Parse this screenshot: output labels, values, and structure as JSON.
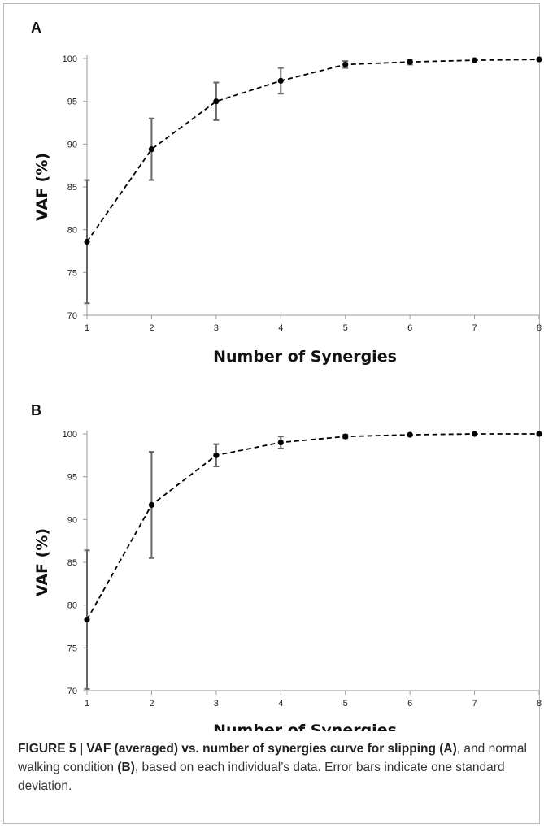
{
  "chart_data": [
    {
      "panel": "A",
      "type": "line",
      "xlabel": "Number of Synergies",
      "ylabel": "VAF (%)",
      "x": [
        1,
        2,
        3,
        4,
        5,
        6,
        7,
        8
      ],
      "xticks": [
        "1",
        "2",
        "3",
        "4",
        "5",
        "6",
        "7",
        "8"
      ],
      "yticks": [
        "70",
        "75",
        "80",
        "85",
        "90",
        "95",
        "100"
      ],
      "ylim": [
        70,
        100
      ],
      "series": [
        {
          "values": [
            78.6,
            89.4,
            95.0,
            97.4,
            99.3,
            99.6,
            99.8,
            99.9
          ],
          "error": [
            7.2,
            3.6,
            2.2,
            1.5,
            0.4,
            0.3,
            0.1,
            0.1
          ]
        }
      ],
      "style": {
        "line": "dashed",
        "marker": "circle",
        "color": "#000000",
        "errorbar_color": "#666666"
      },
      "grid": false
    },
    {
      "panel": "B",
      "type": "line",
      "xlabel": "Number of Synergies",
      "ylabel": "VAF (%)",
      "x": [
        1,
        2,
        3,
        4,
        5,
        6,
        7,
        8
      ],
      "xticks": [
        "1",
        "2",
        "3",
        "4",
        "5",
        "6",
        "7",
        "8"
      ],
      "yticks": [
        "70",
        "75",
        "80",
        "85",
        "90",
        "95",
        "100"
      ],
      "ylim": [
        70,
        100
      ],
      "series": [
        {
          "values": [
            78.3,
            91.7,
            97.5,
            99.0,
            99.7,
            99.9,
            100.0,
            100.0
          ],
          "error": [
            8.1,
            6.2,
            1.3,
            0.7,
            0.2,
            0.1,
            0.05,
            0.05
          ]
        }
      ],
      "style": {
        "line": "dashed",
        "marker": "circle",
        "color": "#000000",
        "errorbar_color": "#666666"
      },
      "grid": false
    }
  ],
  "caption": {
    "label": "FIGURE 5 | VAF (averaged) vs. number of synergies curve for slipping",
    "panel_a_ref": "(A)",
    "text_1": ", and normal walking condition ",
    "panel_b_ref": "(B)",
    "text_2": ", based on each individual’s data. Error bars indicate one standard deviation."
  }
}
